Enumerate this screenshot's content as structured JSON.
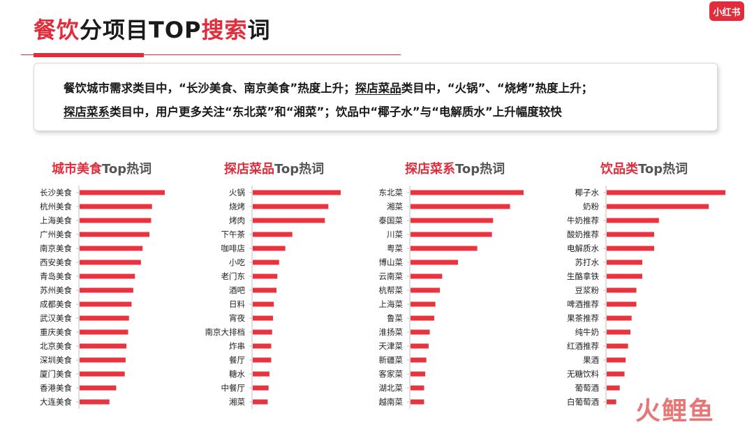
{
  "header": {
    "title_red1": "餐饮",
    "title_dark1": "分项目TOP",
    "title_red2": "搜索",
    "title_dark2": "词",
    "logo": "小红书"
  },
  "summary": {
    "line1_a": "餐饮城市需求类目中，“长沙美食、南京美食”热度上升；",
    "line1_b": "探店菜品",
    "line1_c": "类目中，“火锅”、“烧烤”热度上升；",
    "line2_a": "探店菜系",
    "line2_b": "类目中，用户更多关注“东北菜”和“湘菜”；饮品中“椰子水”与“电解质水”上升幅度较快"
  },
  "colors": {
    "accent": "#e02d3c",
    "bar": "#e8343f"
  },
  "watermark": "火鲤鱼",
  "chart_data": [
    {
      "type": "bar",
      "orientation": "horizontal",
      "title_red": "城市美食",
      "title_dark": "Top热词",
      "categories": [
        "长沙美食",
        "杭州美食",
        "上海美食",
        "广州美食",
        "南京美食",
        "西安美食",
        "青岛美食",
        "苏州美食",
        "成都美食",
        "武汉美食",
        "重庆美食",
        "北京美食",
        "深圳美食",
        "厦门美食",
        "香港美食",
        "大连美食"
      ],
      "values": [
        100,
        85,
        84,
        82,
        74,
        72,
        65,
        63,
        61,
        58,
        57,
        55,
        54,
        53,
        43,
        35
      ]
    },
    {
      "type": "bar",
      "orientation": "horizontal",
      "title_red": "探店菜品",
      "title_dark": "Top热词",
      "categories": [
        "火锅",
        "烧烤",
        "烤肉",
        "下午茶",
        "咖啡店",
        "小吃",
        "老门东",
        "酒吧",
        "日料",
        "宵夜",
        "南京大排档",
        "炸串",
        "餐厅",
        "糖水",
        "中餐厅",
        "湘菜"
      ],
      "values": [
        100,
        86,
        82,
        45,
        37,
        30,
        28,
        27,
        24,
        23,
        22,
        21,
        21,
        19,
        18,
        17
      ]
    },
    {
      "type": "bar",
      "orientation": "horizontal",
      "title_red": "探店菜系",
      "title_dark": "Top热词",
      "categories": [
        "东北菜",
        "湘菜",
        "泰国菜",
        "川菜",
        "粤菜",
        "博山菜",
        "云南菜",
        "杭帮菜",
        "上海菜",
        "鲁菜",
        "淮扬菜",
        "天津菜",
        "新疆菜",
        "客家菜",
        "湖北菜",
        "越南菜"
      ],
      "values": [
        100,
        88,
        73,
        72,
        59,
        42,
        28,
        26,
        22,
        21,
        17,
        16,
        14,
        13,
        12,
        12
      ]
    },
    {
      "type": "bar",
      "orientation": "horizontal",
      "title_red": "饮品类",
      "title_dark": "Top热词",
      "categories": [
        "椰子水",
        "奶粉",
        "牛奶推荐",
        "酸奶推荐",
        "电解质水",
        "苏打水",
        "生酪拿铁",
        "豆浆粉",
        "啤酒推荐",
        "果茶推荐",
        "纯牛奶",
        "红酒推荐",
        "果酒",
        "无糖饮料",
        "葡萄酒",
        "白葡萄酒"
      ],
      "values": [
        100,
        86,
        44,
        40,
        40,
        30,
        30,
        25,
        25,
        21,
        20,
        18,
        16,
        15,
        11,
        8
      ]
    }
  ]
}
